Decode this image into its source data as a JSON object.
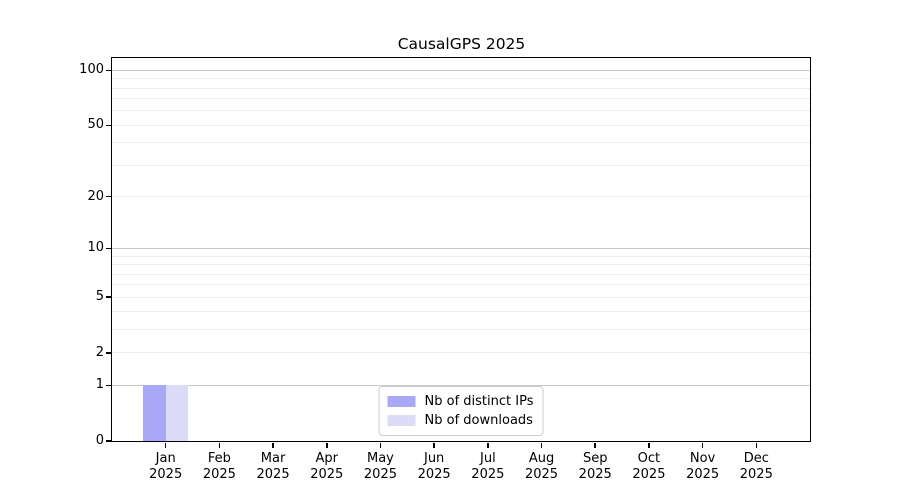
{
  "chart": {
    "title": "CausalGPS 2025"
  },
  "chart_data": {
    "type": "bar",
    "title": "CausalGPS 2025",
    "categories": [
      "Jan 2025",
      "Feb 2025",
      "Mar 2025",
      "Apr 2025",
      "May 2025",
      "Jun 2025",
      "Jul 2025",
      "Aug 2025",
      "Sep 2025",
      "Oct 2025",
      "Nov 2025",
      "Dec 2025"
    ],
    "series": [
      {
        "name": "Nb of distinct IPs",
        "color": "#a8a8f7",
        "values": [
          1,
          0,
          0,
          0,
          0,
          0,
          0,
          0,
          0,
          0,
          0,
          0
        ]
      },
      {
        "name": "Nb of downloads",
        "color": "#dcdcf8",
        "values": [
          1,
          0,
          0,
          0,
          0,
          0,
          0,
          0,
          0,
          0,
          0,
          0
        ]
      }
    ],
    "xlabel": "",
    "ylabel": "",
    "yscale": "log1p",
    "ylim": [
      0,
      117
    ],
    "y_tick_values": [
      0,
      1,
      2,
      5,
      10,
      20,
      50,
      100
    ],
    "y_grid_major": [
      1,
      10,
      100
    ],
    "y_grid_minor": [
      2,
      3,
      4,
      5,
      6,
      7,
      8,
      9,
      20,
      30,
      40,
      50,
      60,
      70,
      80,
      90
    ],
    "grid": "horizontal",
    "legend_position": "bottom-center",
    "colors": {
      "grid_major": "#c8c8c8",
      "grid_minor": "#ececec",
      "spine": "#000000",
      "background": "#ffffff"
    }
  }
}
